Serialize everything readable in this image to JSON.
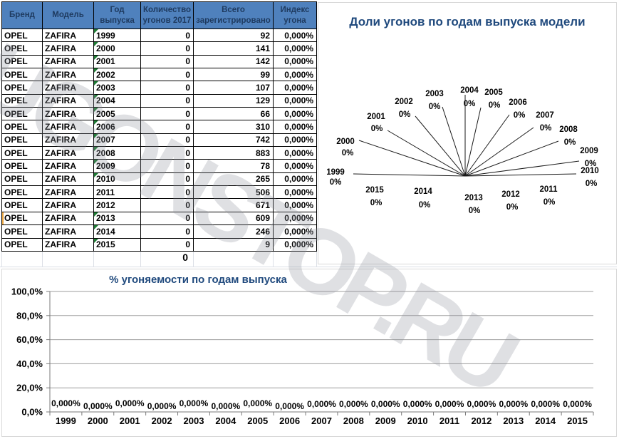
{
  "watermark": "UGONSTOP.RU",
  "table": {
    "headers": [
      {
        "lines": [
          "Бренд"
        ]
      },
      {
        "lines": [
          "Модель"
        ]
      },
      {
        "lines": [
          "Год",
          "выпуска"
        ]
      },
      {
        "lines": [
          "Количество",
          "угонов 2017"
        ]
      },
      {
        "lines": [
          "Всего",
          "зарегистрировано"
        ]
      },
      {
        "lines": [
          "Индекс",
          "угона"
        ]
      }
    ],
    "rows": [
      {
        "brand": "OPEL",
        "model": "ZAFIRA",
        "year": "1999",
        "thefts_2017": "0",
        "registered": "92",
        "theft_index": "0,000%",
        "flag": true,
        "accent": false
      },
      {
        "brand": "OPEL",
        "model": "ZAFIRA",
        "year": "2000",
        "thefts_2017": "0",
        "registered": "141",
        "theft_index": "0,000%",
        "flag": true,
        "accent": false
      },
      {
        "brand": "OPEL",
        "model": "ZAFIRA",
        "year": "2001",
        "thefts_2017": "0",
        "registered": "142",
        "theft_index": "0,000%",
        "flag": true,
        "accent": false
      },
      {
        "brand": "OPEL",
        "model": "ZAFIRA",
        "year": "2002",
        "thefts_2017": "0",
        "registered": "99",
        "theft_index": "0,000%",
        "flag": true,
        "accent": false
      },
      {
        "brand": "OPEL",
        "model": "ZAFIRA",
        "year": "2003",
        "thefts_2017": "0",
        "registered": "107",
        "theft_index": "0,000%",
        "flag": true,
        "accent": false
      },
      {
        "brand": "OPEL",
        "model": "ZAFIRA",
        "year": "2004",
        "thefts_2017": "0",
        "registered": "129",
        "theft_index": "0,000%",
        "flag": true,
        "accent": false
      },
      {
        "brand": "OPEL",
        "model": "ZAFIRA",
        "year": "2005",
        "thefts_2017": "0",
        "registered": "66",
        "theft_index": "0,000%",
        "flag": true,
        "accent": false
      },
      {
        "brand": "OPEL",
        "model": "ZAFIRA",
        "year": "2006",
        "thefts_2017": "0",
        "registered": "310",
        "theft_index": "0,000%",
        "flag": true,
        "accent": false
      },
      {
        "brand": "OPEL",
        "model": "ZAFIRA",
        "year": "2007",
        "thefts_2017": "0",
        "registered": "742",
        "theft_index": "0,000%",
        "flag": true,
        "accent": false
      },
      {
        "brand": "OPEL",
        "model": "ZAFIRA",
        "year": "2008",
        "thefts_2017": "0",
        "registered": "883",
        "theft_index": "0,000%",
        "flag": true,
        "accent": false
      },
      {
        "brand": "OPEL",
        "model": "ZAFIRA",
        "year": "2009",
        "thefts_2017": "0",
        "registered": "78",
        "theft_index": "0,000%",
        "flag": true,
        "accent": false
      },
      {
        "brand": "OPEL",
        "model": "ZAFIRA",
        "year": "2010",
        "thefts_2017": "0",
        "registered": "265",
        "theft_index": "0,000%",
        "flag": true,
        "accent": false
      },
      {
        "brand": "OPEL",
        "model": "ZAFIRA",
        "year": "2011",
        "thefts_2017": "0",
        "registered": "506",
        "theft_index": "0,000%",
        "flag": false,
        "accent": false
      },
      {
        "brand": "OPEL",
        "model": "ZAFIRA",
        "year": "2012",
        "thefts_2017": "0",
        "registered": "671",
        "theft_index": "0,000%",
        "flag": false,
        "accent": false
      },
      {
        "brand": "OPEL",
        "model": "ZAFIRA",
        "year": "2013",
        "thefts_2017": "0",
        "registered": "609",
        "theft_index": "0,000%",
        "flag": true,
        "accent": true
      },
      {
        "brand": "OPEL",
        "model": "ZAFIRA",
        "year": "2014",
        "thefts_2017": "0",
        "registered": "246",
        "theft_index": "0,000%",
        "flag": true,
        "accent": false
      },
      {
        "brand": "OPEL",
        "model": "ZAFIRA",
        "year": "2015",
        "thefts_2017": "0",
        "registered": "9",
        "theft_index": "0,000%",
        "flag": true,
        "accent": false
      }
    ],
    "total_thefts": "0"
  },
  "chart_data": [
    {
      "type": "pie",
      "title": "Доли угонов по годам выпуска модели",
      "categories": [
        "1999",
        "2000",
        "2001",
        "2002",
        "2003",
        "2004",
        "2005",
        "2006",
        "2007",
        "2008",
        "2009",
        "2010",
        "2011",
        "2012",
        "2013",
        "2014",
        "2015"
      ],
      "values": [
        0,
        0,
        0,
        0,
        0,
        0,
        0,
        0,
        0,
        0,
        0,
        0,
        0,
        0,
        0,
        0,
        0
      ],
      "slice_labels": [
        "0%",
        "0%",
        "0%",
        "0%",
        "0%",
        "0%",
        "0%",
        "0%",
        "0%",
        "0%",
        "0%",
        "0%",
        "0%",
        "0%",
        "0%",
        "0%",
        "0%"
      ],
      "legend": "none",
      "note": "all slices are 0% — only leader lines radiating from center are visible"
    },
    {
      "type": "bar",
      "title": "% угоняемости по годам выпуска",
      "categories": [
        "1999",
        "2000",
        "2001",
        "2002",
        "2003",
        "2004",
        "2005",
        "2006",
        "2007",
        "2008",
        "2009",
        "2010",
        "2011",
        "2012",
        "2013",
        "2014",
        "2015"
      ],
      "values": [
        0,
        0,
        0,
        0,
        0,
        0,
        0,
        0,
        0,
        0,
        0,
        0,
        0,
        0,
        0,
        0,
        0
      ],
      "data_labels": [
        "0,000%",
        "0,000%",
        "0,000%",
        "0,000%",
        "0,000%",
        "0,000%",
        "0,000%",
        "0,000%",
        "0,000%",
        "0,000%",
        "0,000%",
        "0,000%",
        "0,000%",
        "0,000%",
        "0,000%",
        "0,000%",
        "0,000%"
      ],
      "ytick_labels": [
        "100,0%",
        "80,0%",
        "60,0%",
        "40,0%",
        "20,0%",
        "0,0%"
      ],
      "ylim": [
        0,
        100
      ],
      "grid": true,
      "legend": "none"
    }
  ]
}
